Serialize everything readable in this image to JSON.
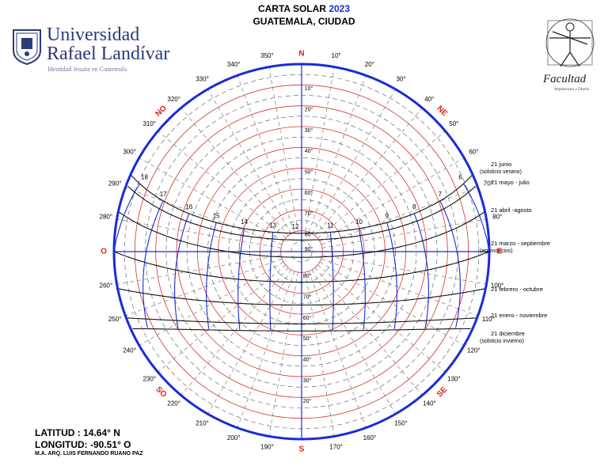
{
  "header": {
    "title_prefix": "CARTA SOLAR",
    "year": "2023",
    "subtitle": "GUATEMALA, CIUDAD"
  },
  "university": {
    "line1": "Universidad",
    "line2": "Rafael Landívar",
    "tagline": "Identidad Jesuita en Guatemala"
  },
  "faculty_logo": {
    "script_text": "Facultad",
    "small_text": "Arquitectura y Diseño"
  },
  "footer": {
    "latitude": "LATITUD : 14.64° N",
    "longitude": "LONGITUD: -90.51° O",
    "author": "M.A. ARQ. LUIS FERNANDO RUANO PAZ"
  },
  "colors": {
    "outer_circle": "#1a2bd6",
    "axes": "#1a2bd6",
    "altitude_circle": "#d6322a",
    "azimuth_line": "#666666",
    "date_path": "#111111",
    "hour_line": "#1a2bd6",
    "cardinal": "#e0201a"
  },
  "chart_data": {
    "type": "sun-path-diagram",
    "latitude_deg": 14.64,
    "longitude_deg": -90.51,
    "cardinals": [
      {
        "label": "N",
        "azimuth": 0
      },
      {
        "label": "NE",
        "azimuth": 45
      },
      {
        "label": "E",
        "azimuth": 90
      },
      {
        "label": "SE",
        "azimuth": 135
      },
      {
        "label": "S",
        "azimuth": 180
      },
      {
        "label": "SO",
        "azimuth": 225
      },
      {
        "label": "O",
        "azimuth": 270
      },
      {
        "label": "NO",
        "azimuth": 315
      }
    ],
    "azimuth_labels": [
      "350°",
      "10°",
      "20°",
      "30°",
      "40°",
      "50°",
      "60°",
      "70°",
      "80°",
      "100°",
      "110°",
      "120°",
      "130°",
      "140°",
      "150°",
      "160°",
      "170°",
      "190°",
      "200°",
      "210°",
      "220°",
      "230°",
      "240°",
      "250°",
      "260°",
      "280°",
      "290°",
      "300°",
      "310°",
      "320°",
      "330°",
      "340°"
    ],
    "azimuth_values": [
      350,
      10,
      20,
      30,
      40,
      50,
      60,
      70,
      80,
      100,
      110,
      120,
      130,
      140,
      150,
      160,
      170,
      190,
      200,
      210,
      220,
      230,
      240,
      250,
      260,
      280,
      290,
      300,
      310,
      320,
      330,
      340
    ],
    "altitude_labels": [
      "10°",
      "20°",
      "30°",
      "40°",
      "50°",
      "60°",
      "70°",
      "80°",
      "90°"
    ],
    "altitude_values": [
      10,
      20,
      30,
      40,
      50,
      60,
      70,
      80,
      90
    ],
    "altitude_labels_south": [
      "80°",
      "70°",
      "60°",
      "50°",
      "40°",
      "30°",
      "20°"
    ],
    "altitude_values_south": [
      80,
      70,
      60,
      50,
      40,
      30,
      20
    ],
    "hour_labels": [
      "6",
      "7",
      "8",
      "9",
      "10",
      "11",
      "12",
      "13",
      "14",
      "15",
      "16",
      "17",
      "18"
    ],
    "hour_values": [
      6,
      7,
      8,
      9,
      10,
      11,
      12,
      13,
      14,
      15,
      16,
      17,
      18
    ],
    "dates": [
      {
        "label": "21 junio",
        "note": "(solsticio verano)",
        "declination": 23.44
      },
      {
        "label": "21 mayo - julio",
        "note": "",
        "declination": 20.2
      },
      {
        "label": "21 abril -agosto",
        "note": "",
        "declination": 11.9
      },
      {
        "label": "21 marzo - septiembre",
        "note": "(equinoccios)",
        "declination": 0
      },
      {
        "label": "21 febrero - octubre",
        "note": "",
        "declination": -11.0
      },
      {
        "label": "21 enero - noviembre",
        "note": "",
        "declination": -20.0
      },
      {
        "label": "21 diciembre",
        "note": "(solsticio invierno)",
        "declination": -23.44
      }
    ]
  }
}
